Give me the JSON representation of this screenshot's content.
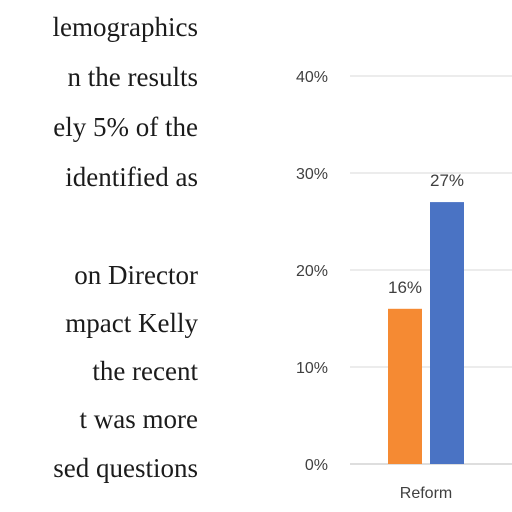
{
  "text_lines": [
    "lemographics",
    "n  the  results",
    "ely 5% of the",
    "identified  as",
    "",
    "on  Director",
    "mpact  Kelly",
    "the  recent",
    "t  was  more",
    "sed questions"
  ],
  "chart_data": {
    "type": "bar",
    "categories": [
      "Reform"
    ],
    "series": [
      {
        "values": [
          16
        ],
        "color": "#F58A33"
      },
      {
        "values": [
          27
        ],
        "color": "#4A73C4"
      }
    ],
    "data_labels": [
      "16%",
      "27%"
    ],
    "yticks": [
      "0%",
      "10%",
      "20%",
      "30%",
      "40%"
    ],
    "ylim": [
      0,
      40
    ],
    "grid": true
  }
}
